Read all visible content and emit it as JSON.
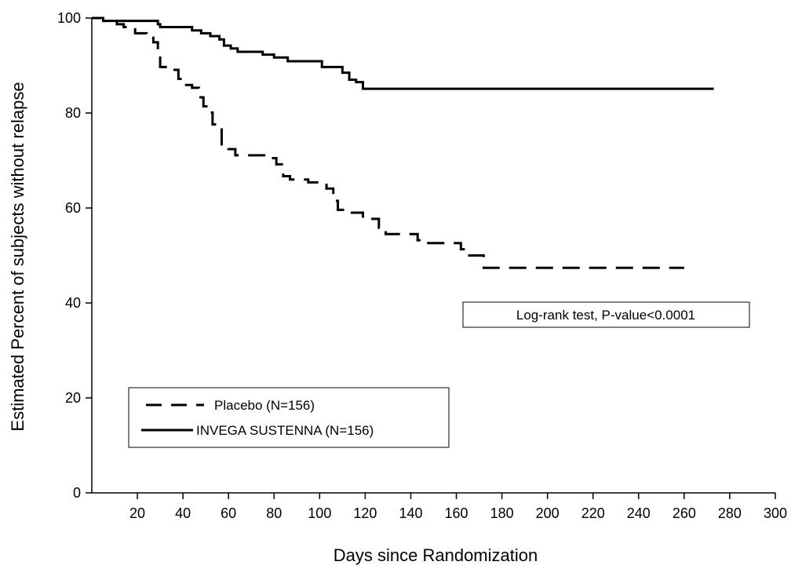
{
  "chart_data": {
    "type": "line",
    "title": "",
    "xlabel": "Days since Randomization",
    "ylabel": "Estimated Percent of subjects without relapse",
    "xlim": [
      0,
      300
    ],
    "ylim": [
      0,
      100
    ],
    "xticks": [
      20,
      40,
      60,
      80,
      100,
      120,
      140,
      160,
      180,
      200,
      220,
      240,
      260,
      280,
      300
    ],
    "yticks": [
      0,
      20,
      40,
      60,
      80,
      100
    ],
    "grid": false,
    "legend_position": "bottom-left",
    "annotation": "Log-rank test, P-value<0.0001",
    "series": [
      {
        "name": "Placebo (N=156)",
        "style": "dashed",
        "color": "#000000",
        "step_points": [
          [
            0,
            100
          ],
          [
            5,
            99.4
          ],
          [
            11,
            98.7
          ],
          [
            14,
            98.1
          ],
          [
            19,
            96.8
          ],
          [
            24,
            96.2
          ],
          [
            27,
            94.9
          ],
          [
            29,
            92.3
          ],
          [
            30,
            89.7
          ],
          [
            35,
            89.1
          ],
          [
            38,
            87.2
          ],
          [
            40,
            85.9
          ],
          [
            44,
            85.3
          ],
          [
            47,
            83.3
          ],
          [
            49,
            81.4
          ],
          [
            51,
            80.1
          ],
          [
            53,
            77.6
          ],
          [
            55,
            76.9
          ],
          [
            57,
            73.1
          ],
          [
            60,
            72.4
          ],
          [
            63,
            71.1
          ],
          [
            78,
            70.5
          ],
          [
            81,
            69.2
          ],
          [
            84,
            66.7
          ],
          [
            87,
            66.0
          ],
          [
            95,
            65.4
          ],
          [
            103,
            64.1
          ],
          [
            106,
            61.5
          ],
          [
            108,
            59.6
          ],
          [
            112,
            59.0
          ],
          [
            119,
            57.7
          ],
          [
            126,
            55.8
          ],
          [
            129,
            54.5
          ],
          [
            143,
            53.2
          ],
          [
            146,
            52.6
          ],
          [
            162,
            51.3
          ],
          [
            164,
            50.0
          ],
          [
            172,
            47.4
          ],
          [
            260,
            47.4
          ]
        ]
      },
      {
        "name": "INVEGA SUSTENNA (N=156)",
        "style": "solid",
        "color": "#000000",
        "step_points": [
          [
            0,
            100
          ],
          [
            5,
            99.4
          ],
          [
            29,
            98.7
          ],
          [
            30,
            98.1
          ],
          [
            44,
            97.4
          ],
          [
            48,
            96.8
          ],
          [
            52,
            96.2
          ],
          [
            56,
            95.5
          ],
          [
            58,
            94.2
          ],
          [
            61,
            93.6
          ],
          [
            64,
            92.9
          ],
          [
            75,
            92.3
          ],
          [
            80,
            91.7
          ],
          [
            86,
            90.9
          ],
          [
            101,
            89.7
          ],
          [
            110,
            88.5
          ],
          [
            113,
            87.0
          ],
          [
            116,
            86.5
          ],
          [
            119,
            85.1
          ],
          [
            273,
            85.1
          ]
        ]
      }
    ]
  }
}
